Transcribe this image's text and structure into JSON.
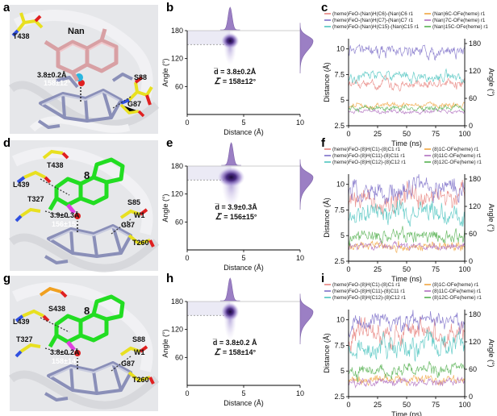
{
  "figure": {
    "panel_letters": [
      "a",
      "b",
      "c",
      "d",
      "e",
      "f",
      "g",
      "h",
      "i"
    ]
  },
  "molecules": [
    {
      "residues": [
        "T438",
        "Nan",
        "S88",
        "G87"
      ],
      "distance_label": "3.8±0.2Å",
      "angle_label": "158±12°",
      "ligand_color": "#d8a0a4"
    },
    {
      "residues": [
        "T438",
        "L439",
        "T327",
        "8",
        "S85",
        "G87",
        "W1",
        "T260"
      ],
      "distance_label": "3.9±0.3Å",
      "angle_label": "156±15°",
      "ligand_color": "#22dd22"
    },
    {
      "residues": [
        "S438",
        "L439",
        "T327",
        "8",
        "S88",
        "G87",
        "W1",
        "T260"
      ],
      "distance_label": "3.8±0.2Å",
      "angle_label": "158±14°",
      "ligand_color": "#22dd22"
    }
  ],
  "density_panels": [
    {
      "d_text": "d̅ = 3.8±0.2Å",
      "a_text": "∠̅ = 158±12°"
    },
    {
      "d_text": "d̅ = 3.9±0.3Å",
      "a_text": "∠̅ = 156±15°"
    },
    {
      "d_text": "d̅ = 3.8±0.2 Å",
      "a_text": "∠̅ = 158±14°"
    }
  ],
  "density_axes": {
    "xlabel": "Distance (Å)",
    "ylabel": "Angle (°)",
    "xticks": [
      "0",
      "5",
      "10"
    ],
    "yticks": [
      "60",
      "120",
      "180"
    ]
  },
  "ts_axes": {
    "xlabel": "Time (ns)",
    "ylabel_left": "Distance (Å)",
    "ylabel_right": "Angle (°)",
    "xticks": [
      "0",
      "25",
      "50",
      "75",
      "100"
    ],
    "yticks_left": [
      "2.5",
      "5",
      "7.5",
      "10"
    ],
    "yticks_right": [
      "0",
      "60",
      "120",
      "180"
    ]
  },
  "ts_panels": [
    {
      "legend": [
        {
          "text": "(heme)FeO-(Nan)H(C6)-(Nan)C6 r1",
          "color": "#e8837e"
        },
        {
          "text": "(Nan)6C-OFe(heme) r1",
          "color": "#f0a540"
        },
        {
          "text": "(heme)FeO-(Nan)H(C7)-(Nan)C7 r1",
          "color": "#7d6fc8"
        },
        {
          "text": "(Nan)7C-OFe(heme) r1",
          "color": "#b070c0"
        },
        {
          "text": "(heme)FeO-(Nan)H(C15)-(Nan)C15 r1",
          "color": "#4ec4c0"
        },
        {
          "text": "(Nan)15C-OFe(heme) r1",
          "color": "#55b050"
        }
      ]
    },
    {
      "legend": [
        {
          "text": "(heme)FeO-(8)H(C1)-(8)C1 r1",
          "color": "#e8837e"
        },
        {
          "text": "(8)1C-OFe(heme) r1",
          "color": "#f0a540"
        },
        {
          "text": "(heme)FeO-(8)H(C11)-(8)C11 r1",
          "color": "#7d6fc8"
        },
        {
          "text": "(8)11C-OFe(heme) r1",
          "color": "#b070c0"
        },
        {
          "text": "(heme)FeO-(8)H(C12)-(8)C12 r1",
          "color": "#4ec4c0"
        },
        {
          "text": "(8)12C-OFe(heme) r1",
          "color": "#55b050"
        }
      ]
    },
    {
      "legend": [
        {
          "text": "(heme)FeO-(8)H(C1)-(8)C1 r1",
          "color": "#e8837e"
        },
        {
          "text": "(8)1C-OFe(heme) r1",
          "color": "#f0a540"
        },
        {
          "text": "(heme)FeO-(8)H(C11)-(8)C11 r1",
          "color": "#7d6fc8"
        },
        {
          "text": "(8)11C-OFe(heme) r1",
          "color": "#b070c0"
        },
        {
          "text": "(heme)FeO-(8)H(C12)-(8)C12 r1",
          "color": "#4ec4c0"
        },
        {
          "text": "(8)12C-OFe(heme) r1",
          "color": "#55b050"
        }
      ]
    }
  ],
  "chart_data": [
    {
      "type": "heatmap",
      "panel": "b",
      "xlabel": "Distance (Å)",
      "ylabel": "Angle (°)",
      "xlim": [
        0,
        10
      ],
      "ylim": [
        0,
        180
      ],
      "center": {
        "distance": 3.8,
        "angle": 158
      },
      "spread": {
        "distance": 0.2,
        "angle": 12
      },
      "highlight_band": [
        150,
        180
      ]
    },
    {
      "type": "heatmap",
      "panel": "e",
      "xlabel": "Distance (Å)",
      "ylabel": "Angle (°)",
      "xlim": [
        0,
        10
      ],
      "ylim": [
        0,
        180
      ],
      "center": {
        "distance": 3.9,
        "angle": 156
      },
      "spread": {
        "distance": 0.3,
        "angle": 15
      },
      "highlight_band": [
        150,
        180
      ]
    },
    {
      "type": "heatmap",
      "panel": "h",
      "xlabel": "Distance (Å)",
      "ylabel": "Angle (°)",
      "xlim": [
        0,
        10
      ],
      "ylim": [
        0,
        180
      ],
      "center": {
        "distance": 3.8,
        "angle": 158
      },
      "spread": {
        "distance": 0.2,
        "angle": 14
      },
      "highlight_band": [
        150,
        180
      ]
    },
    {
      "type": "line",
      "panel": "c",
      "xlabel": "Time (ns)",
      "ylabel": "Distance (Å)",
      "y2label": "Angle (°)",
      "xlim": [
        0,
        100
      ],
      "ylim": [
        2.5,
        11
      ],
      "series": [
        {
          "name": "(heme)FeO-(Nan)H(C6)-(Nan)C6 r1",
          "mean": 6.6,
          "noise": 0.35,
          "color": "#e8837e"
        },
        {
          "name": "(Nan)6C-OFe(heme) r1",
          "mean": 4.5,
          "noise": 0.2,
          "color": "#f0a540"
        },
        {
          "name": "(heme)FeO-(Nan)H(C7)-(Nan)C7 r1",
          "mean": 9.8,
          "noise": 0.45,
          "color": "#7d6fc8"
        },
        {
          "name": "(Nan)7C-OFe(heme) r1",
          "mean": 3.9,
          "noise": 0.15,
          "color": "#b070c0"
        },
        {
          "name": "(heme)FeO-(Nan)H(C15)-(Nan)C15 r1",
          "mean": 7.3,
          "noise": 0.4,
          "color": "#4ec4c0"
        },
        {
          "name": "(Nan)15C-OFe(heme) r1",
          "mean": 4.2,
          "noise": 0.2,
          "color": "#55b050"
        }
      ]
    },
    {
      "type": "line",
      "panel": "f",
      "xlabel": "Time (ns)",
      "ylabel": "Distance (Å)",
      "y2label": "Angle (°)",
      "xlim": [
        0,
        100
      ],
      "ylim": [
        2.5,
        11
      ],
      "series": [
        {
          "name": "(heme)FeO-(8)H(C1)-(8)C1 r1",
          "mean": 8.6,
          "noise": 0.9,
          "color": "#e8837e"
        },
        {
          "name": "(8)1C-OFe(heme) r1",
          "mean": 4.0,
          "noise": 0.35,
          "color": "#f0a540"
        },
        {
          "name": "(heme)FeO-(8)H(C11)-(8)C11 r1",
          "mean": 9.5,
          "noise": 0.8,
          "color": "#7d6fc8"
        },
        {
          "name": "(8)11C-OFe(heme) r1",
          "mean": 3.9,
          "noise": 0.3,
          "color": "#b070c0"
        },
        {
          "name": "(heme)FeO-(8)H(C12)-(8)C12 r1",
          "mean": 7.2,
          "noise": 0.8,
          "color": "#4ec4c0"
        },
        {
          "name": "(8)12C-OFe(heme) r1",
          "mean": 5.0,
          "noise": 0.5,
          "color": "#55b050"
        }
      ]
    },
    {
      "type": "line",
      "panel": "i",
      "xlabel": "Time (ns)",
      "ylabel": "Distance (Å)",
      "y2label": "Angle (°)",
      "xlim": [
        0,
        100
      ],
      "ylim": [
        2.5,
        11
      ],
      "series": [
        {
          "name": "(heme)FeO-(8)H(C1)-(8)C1 r1",
          "mean": 8.7,
          "noise": 0.9,
          "color": "#e8837e"
        },
        {
          "name": "(8)1C-OFe(heme) r1",
          "mean": 4.1,
          "noise": 0.35,
          "color": "#f0a540"
        },
        {
          "name": "(heme)FeO-(8)H(C11)-(8)C11 r1",
          "mean": 9.7,
          "noise": 0.7,
          "color": "#7d6fc8"
        },
        {
          "name": "(8)11C-OFe(heme) r1",
          "mean": 3.9,
          "noise": 0.3,
          "color": "#b070c0"
        },
        {
          "name": "(heme)FeO-(8)H(C12)-(8)C12 r1",
          "mean": 7.4,
          "noise": 0.8,
          "color": "#4ec4c0"
        },
        {
          "name": "(8)12C-OFe(heme) r1",
          "mean": 5.1,
          "noise": 0.5,
          "color": "#55b050"
        }
      ]
    }
  ]
}
